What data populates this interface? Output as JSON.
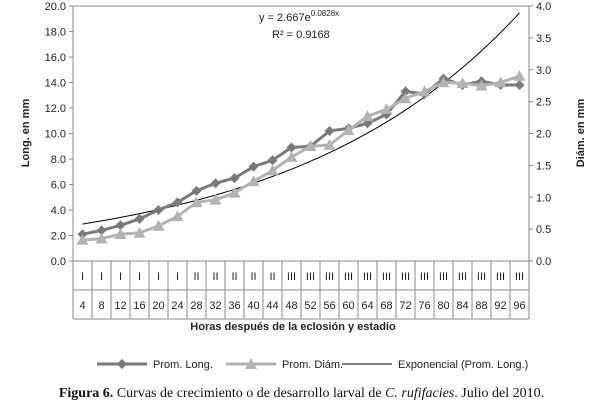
{
  "chart_data": {
    "type": "line",
    "xlabel": "Horas después de la eclosión y estadío",
    "ylabel": "Long. en mm",
    "y2label": "Diám. en mm",
    "ylim": [
      0,
      20
    ],
    "y2lim": [
      0,
      4
    ],
    "yticks": [
      "0.0",
      "2.0",
      "4.0",
      "6.0",
      "8.0",
      "10.0",
      "12.0",
      "14.0",
      "16.0",
      "18.0",
      "20.0"
    ],
    "y2ticks": [
      "0.0",
      "0.5",
      "1.0",
      "1.5",
      "2.0",
      "2.5",
      "3.0",
      "3.5",
      "4.0"
    ],
    "categories": [
      "4",
      "8",
      "12",
      "16",
      "20",
      "24",
      "28",
      "32",
      "36",
      "40",
      "44",
      "48",
      "52",
      "56",
      "60",
      "64",
      "68",
      "72",
      "76",
      "80",
      "84",
      "88",
      "92",
      "96"
    ],
    "stages": [
      "I",
      "I",
      "I",
      "I",
      "I",
      "I",
      "II",
      "II",
      "II",
      "II",
      "II",
      "III",
      "III",
      "III",
      "III",
      "III",
      "III",
      "III",
      "III",
      "III",
      "III",
      "III",
      "III",
      "III"
    ],
    "series": [
      {
        "name": "Prom. Long.",
        "axis": "left",
        "color": "#7a7a7a",
        "marker": "diamond",
        "values": [
          2.1,
          2.4,
          2.8,
          3.3,
          4.0,
          4.6,
          5.5,
          6.1,
          6.5,
          7.4,
          7.9,
          8.9,
          9.0,
          10.2,
          10.4,
          10.8,
          11.5,
          13.3,
          13.1,
          14.3,
          13.8,
          14.1,
          13.8,
          13.8
        ]
      },
      {
        "name": "Prom. Diám.",
        "axis": "right",
        "color": "#b3b3b3",
        "marker": "triangle",
        "values": [
          0.33,
          0.35,
          0.42,
          0.44,
          0.55,
          0.7,
          0.92,
          0.96,
          1.07,
          1.25,
          1.42,
          1.63,
          1.8,
          1.82,
          2.05,
          2.27,
          2.38,
          2.55,
          2.66,
          2.8,
          2.79,
          2.75,
          2.8,
          2.9
        ]
      }
    ],
    "trendline": {
      "name": "Exponencial (Prom. Long.)",
      "equation": "y = 2.667e",
      "exponent": "0.0828x",
      "r2": "R² = 0.9168",
      "a": 2.667,
      "b": 0.0828,
      "color": "#000000"
    },
    "legend_position": "bottom",
    "grid": false
  },
  "caption": {
    "label": "Figura 6.",
    "text_before": " Curvas de crecimiento o de desarrollo larval de ",
    "species": "C. rufifacies",
    "text_after": ". Julio del 2010."
  }
}
